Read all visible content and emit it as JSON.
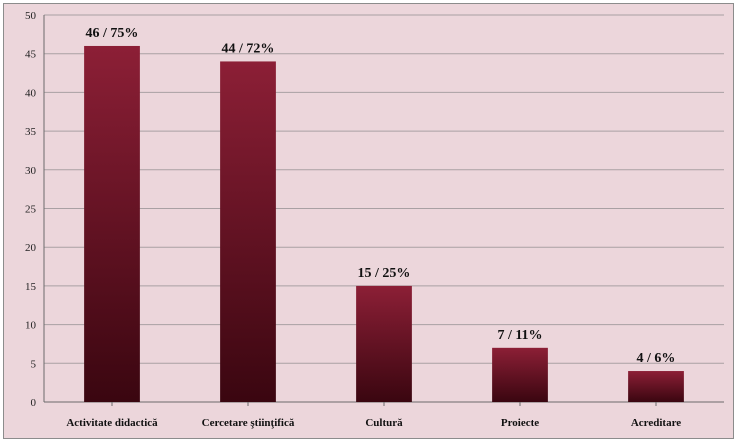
{
  "chart_data": {
    "type": "bar",
    "title": "",
    "xlabel": "",
    "ylabel": "",
    "ylim": [
      0,
      50
    ],
    "yticks": [
      0,
      5,
      10,
      15,
      20,
      25,
      30,
      35,
      40,
      45,
      50
    ],
    "grid": true,
    "legend": "none",
    "categories": [
      "Activitate didactică",
      "Cercetare ştiinţifică",
      "Cultură",
      "Proiecte",
      "Acreditare"
    ],
    "values": [
      46,
      44,
      15,
      7,
      4
    ],
    "data_labels": [
      "46 / 75%",
      "44 / 72%",
      "15 / 25%",
      "7 / 11%",
      "4 / 6%"
    ],
    "colors": {
      "bar_top": "#8c1f36",
      "bar_bottom": "#3a0610",
      "background": "#ecd6db",
      "grid": "#a9a0a3"
    }
  }
}
